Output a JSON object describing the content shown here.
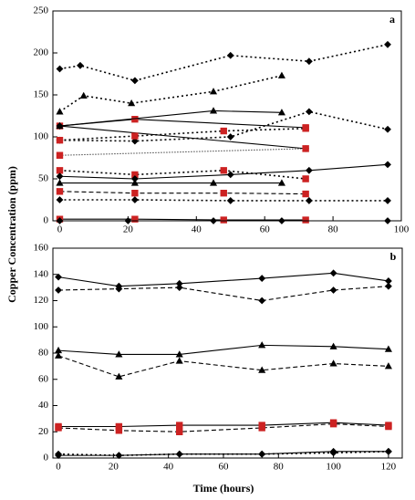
{
  "chart_data": [
    {
      "type": "line",
      "panel_label": "a",
      "ylabel": "Copper Concentration (ppm)",
      "xlim": [
        -2,
        100
      ],
      "ylim": [
        0,
        250
      ],
      "xticks": [
        0,
        20,
        40,
        60,
        80,
        100
      ],
      "yticks": [
        0,
        50,
        100,
        150,
        200,
        250
      ],
      "series": [
        {
          "marker": "diamond",
          "dash": "dotted",
          "color": "#000000",
          "x": [
            0,
            6,
            22,
            50,
            73,
            96
          ],
          "values": [
            181,
            185,
            167,
            197,
            190,
            210
          ]
        },
        {
          "marker": "triangle",
          "dash": "dotted",
          "color": "#000000",
          "x": [
            0,
            7,
            21,
            45,
            65
          ],
          "values": [
            130,
            149,
            140,
            154,
            173
          ]
        },
        {
          "marker": "square",
          "dash": "solid",
          "color": "#cc2222",
          "x": [
            0,
            22,
            72
          ],
          "values": [
            113,
            121,
            111
          ]
        },
        {
          "marker": "triangle",
          "dash": "solid",
          "color": "#000000",
          "x": [
            0,
            45,
            65
          ],
          "values": [
            113,
            131,
            129
          ]
        },
        {
          "marker": "diamond",
          "dash": "solid",
          "color": "#000000",
          "x": [
            0,
            72
          ],
          "values": [
            113,
            86
          ]
        },
        {
          "marker": "diamond",
          "dash": "dotted",
          "color": "#000000",
          "x": [
            0,
            22,
            50,
            73,
            96
          ],
          "values": [
            96,
            95,
            100,
            130,
            109
          ]
        },
        {
          "marker": "square",
          "dash": "dotted",
          "color": "#cc2222",
          "x": [
            0,
            22,
            48,
            72
          ],
          "values": [
            96,
            101,
            107,
            110
          ]
        },
        {
          "marker": "square",
          "dash": "fine",
          "color": "#cc2222",
          "x": [
            0,
            72
          ],
          "values": [
            78,
            86
          ]
        },
        {
          "marker": "square",
          "dash": "dotted",
          "color": "#cc2222",
          "x": [
            0,
            22,
            48,
            72
          ],
          "values": [
            60,
            55,
            60,
            50
          ]
        },
        {
          "marker": "diamond",
          "dash": "solid",
          "color": "#000000",
          "x": [
            0,
            22,
            50,
            73,
            96
          ],
          "values": [
            53,
            50,
            55,
            60,
            67
          ]
        },
        {
          "marker": "triangle",
          "dash": "solid",
          "color": "#000000",
          "x": [
            0,
            22,
            45,
            65
          ],
          "values": [
            45,
            45,
            45,
            45
          ]
        },
        {
          "marker": "square",
          "dash": "dashed",
          "color": "#cc2222",
          "x": [
            0,
            22,
            48,
            72
          ],
          "values": [
            35,
            33,
            33,
            32
          ]
        },
        {
          "marker": "diamond",
          "dash": "dotted",
          "color": "#000000",
          "x": [
            0,
            22,
            50,
            73,
            96
          ],
          "values": [
            25,
            25,
            24,
            24,
            24
          ]
        },
        {
          "marker": "square",
          "dash": "solid",
          "color": "#cc2222",
          "x": [
            0,
            22,
            48,
            72
          ],
          "values": [
            2,
            2,
            1,
            1
          ]
        },
        {
          "marker": "diamond",
          "dash": "solid",
          "color": "#000000",
          "x": [
            0,
            20,
            45,
            65,
            96
          ],
          "values": [
            0,
            0,
            0,
            0,
            0
          ]
        }
      ]
    },
    {
      "type": "line",
      "panel_label": "b",
      "xlabel": "Time (hours)",
      "xlim": [
        -2,
        125
      ],
      "ylim": [
        0,
        160
      ],
      "xticks": [
        0,
        20,
        40,
        60,
        80,
        100,
        120
      ],
      "yticks": [
        0,
        20,
        40,
        60,
        80,
        100,
        120,
        140,
        160
      ],
      "series": [
        {
          "marker": "diamond",
          "dash": "solid",
          "color": "#000000",
          "x": [
            0,
            22,
            44,
            74,
            100,
            120
          ],
          "values": [
            138,
            131,
            133,
            137,
            141,
            135
          ]
        },
        {
          "marker": "diamond",
          "dash": "dashed",
          "color": "#000000",
          "x": [
            0,
            22,
            44,
            74,
            100,
            120
          ],
          "values": [
            128,
            129,
            130,
            120,
            128,
            131
          ]
        },
        {
          "marker": "triangle",
          "dash": "solid",
          "color": "#000000",
          "x": [
            0,
            22,
            44,
            74,
            100,
            120
          ],
          "values": [
            82,
            79,
            79,
            86,
            85,
            83
          ]
        },
        {
          "marker": "triangle",
          "dash": "dashed",
          "color": "#000000",
          "x": [
            0,
            22,
            44,
            74,
            100,
            120
          ],
          "values": [
            78,
            62,
            74,
            67,
            72,
            70
          ]
        },
        {
          "marker": "square",
          "dash": "solid",
          "color": "#cc2222",
          "x": [
            0,
            22,
            44,
            74,
            100,
            120
          ],
          "values": [
            24,
            24,
            25,
            25,
            27,
            25
          ]
        },
        {
          "marker": "square",
          "dash": "dashed",
          "color": "#cc2222",
          "x": [
            0,
            22,
            44,
            74,
            100,
            120
          ],
          "values": [
            23,
            21,
            20,
            23,
            26,
            24
          ]
        },
        {
          "marker": "diamond",
          "dash": "dotted",
          "color": "#000000",
          "x": [
            0,
            22,
            44,
            74,
            100,
            120
          ],
          "values": [
            3,
            2,
            3,
            3,
            4,
            5
          ]
        },
        {
          "marker": "diamond",
          "dash": "solid",
          "color": "#000000",
          "x": [
            0,
            22,
            44,
            74,
            100,
            120
          ],
          "values": [
            2,
            2,
            3,
            3,
            5,
            5
          ]
        }
      ]
    }
  ]
}
